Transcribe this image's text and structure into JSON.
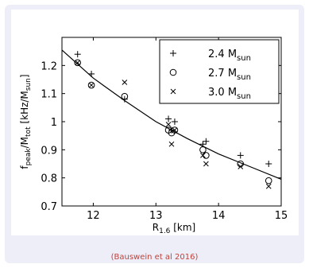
{
  "chart_data": {
    "type": "scatter",
    "xlabel_main": "R",
    "xlabel_sub": "1.6",
    "xlabel_unit": " [km]",
    "ylabel": {
      "f": "f",
      "peak": "peak",
      "mid": "/M",
      "tot": "tot",
      "unit": " [kHz/M",
      "sun": "sun",
      "close": "]"
    },
    "xlim": [
      11.5,
      15
    ],
    "ylim": [
      0.7,
      1.3
    ],
    "xticks": [
      "12",
      "13",
      "14",
      "15"
    ],
    "xtick_values": [
      12,
      13,
      14,
      15
    ],
    "yticks": [
      "0.7",
      "0.8",
      "0.9",
      "1",
      "1.1",
      "1.2"
    ],
    "ytick_values": [
      0.7,
      0.8,
      0.9,
      1.0,
      1.1,
      1.2
    ],
    "grid": false,
    "legend_position": "top-right",
    "series": [
      {
        "name": "2.4",
        "marker": "plus",
        "points": [
          [
            11.75,
            1.24
          ],
          [
            11.97,
            1.17
          ],
          [
            12.5,
            1.08
          ],
          [
            13.2,
            1.01
          ],
          [
            13.25,
            0.97
          ],
          [
            13.3,
            1.0
          ],
          [
            13.75,
            0.92
          ],
          [
            13.8,
            0.93
          ],
          [
            14.35,
            0.88
          ],
          [
            14.8,
            0.85
          ]
        ]
      },
      {
        "name": "2.7",
        "marker": "circle",
        "points": [
          [
            11.75,
            1.21
          ],
          [
            11.97,
            1.13
          ],
          [
            12.5,
            1.09
          ],
          [
            13.2,
            0.97
          ],
          [
            13.25,
            0.96
          ],
          [
            13.3,
            0.97
          ],
          [
            13.75,
            0.9
          ],
          [
            13.8,
            0.88
          ],
          [
            14.35,
            0.85
          ],
          [
            14.8,
            0.79
          ]
        ]
      },
      {
        "name": "3.0",
        "marker": "cross",
        "points": [
          [
            11.75,
            1.21
          ],
          [
            11.97,
            1.13
          ],
          [
            12.5,
            1.14
          ],
          [
            13.2,
            0.99
          ],
          [
            13.25,
            0.92
          ],
          [
            13.3,
            0.97
          ],
          [
            13.75,
            0.88
          ],
          [
            13.8,
            0.85
          ],
          [
            14.35,
            0.84
          ],
          [
            14.8,
            0.77
          ]
        ]
      }
    ],
    "legend_unit": {
      "M": " M",
      "sun": "sun"
    },
    "fit_curve": [
      [
        11.5,
        1.255
      ],
      [
        12.0,
        1.155
      ],
      [
        12.5,
        1.075
      ],
      [
        13.0,
        1.0
      ],
      [
        13.5,
        0.94
      ],
      [
        14.0,
        0.885
      ],
      [
        14.5,
        0.84
      ],
      [
        15.0,
        0.795
      ]
    ]
  },
  "caption": "(Bauswein et al 2016)"
}
